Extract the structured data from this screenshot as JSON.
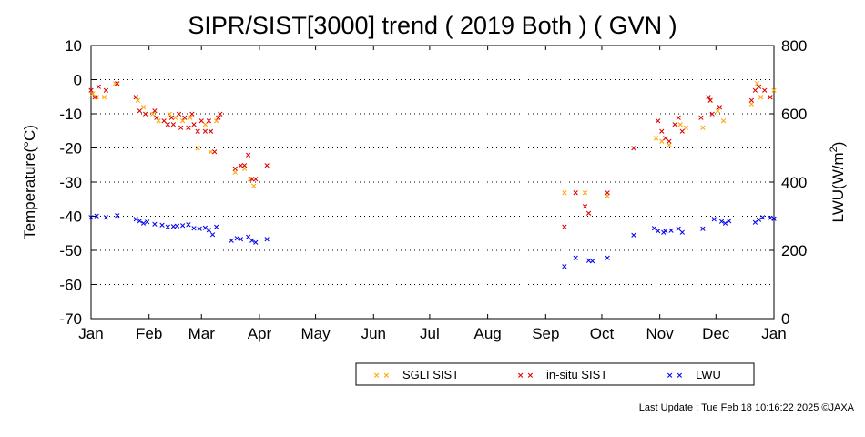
{
  "chart_data": {
    "type": "scatter",
    "title": "SIPR/SIST[3000] trend ( 2019 Both ) ( GVN )",
    "ylabel": "Temperature(°C)",
    "y2label": "LWU(W/m",
    "y2label_sup": "2",
    "y2label_close": ")",
    "ylim": [
      -70,
      10
    ],
    "y2lim": [
      0,
      800
    ],
    "xlim": [
      0,
      365
    ],
    "yticks": [
      10,
      0,
      -10,
      -20,
      -30,
      -40,
      -50,
      -60,
      -70
    ],
    "y2ticks": [
      800,
      600,
      400,
      200,
      0
    ],
    "xticks": [
      {
        "label": "Jan",
        "day": 0
      },
      {
        "label": "Feb",
        "day": 31
      },
      {
        "label": "Mar",
        "day": 59
      },
      {
        "label": "Apr",
        "day": 90
      },
      {
        "label": "May",
        "day": 120
      },
      {
        "label": "Jun",
        "day": 151
      },
      {
        "label": "Jul",
        "day": 181
      },
      {
        "label": "Aug",
        "day": 212
      },
      {
        "label": "Sep",
        "day": 243
      },
      {
        "label": "Oct",
        "day": 273
      },
      {
        "label": "Nov",
        "day": 304
      },
      {
        "label": "Dec",
        "day": 334
      },
      {
        "label": "Jan",
        "day": 365
      }
    ],
    "grid": "horizontal-dotted",
    "legend_position": "bottom-right",
    "series": [
      {
        "name": "SGLI SIST",
        "color": "#ffa500",
        "axis": "left",
        "points": [
          [
            1,
            -4
          ],
          [
            3,
            -5
          ],
          [
            7,
            -5
          ],
          [
            13,
            -1
          ],
          [
            25,
            -6
          ],
          [
            28,
            -8
          ],
          [
            33,
            -10
          ],
          [
            36,
            -12
          ],
          [
            42,
            -10
          ],
          [
            45,
            -11
          ],
          [
            49,
            -12
          ],
          [
            53,
            -11
          ],
          [
            57,
            -20
          ],
          [
            61,
            -13
          ],
          [
            64,
            -21
          ],
          [
            67,
            -12
          ],
          [
            77,
            -27
          ],
          [
            82,
            -26
          ],
          [
            85,
            -29
          ],
          [
            87,
            -31
          ],
          [
            253,
            -33
          ],
          [
            259,
            -33
          ],
          [
            264,
            -33
          ],
          [
            276,
            -34
          ],
          [
            302,
            -17
          ],
          [
            305,
            -18
          ],
          [
            309,
            -19
          ],
          [
            315,
            -13
          ],
          [
            318,
            -14
          ],
          [
            327,
            -14
          ],
          [
            331,
            -6
          ],
          [
            335,
            -9
          ],
          [
            338,
            -12
          ],
          [
            353,
            -7
          ],
          [
            356,
            -1
          ],
          [
            358,
            -5
          ],
          [
            363,
            -5
          ],
          [
            365,
            -3
          ]
        ]
      },
      {
        "name": "in-situ SIST",
        "color": "#dd0000",
        "axis": "left",
        "points": [
          [
            0,
            -3
          ],
          [
            2,
            -5
          ],
          [
            4,
            -2
          ],
          [
            8,
            -3
          ],
          [
            14,
            -1
          ],
          [
            24,
            -5
          ],
          [
            26,
            -9
          ],
          [
            29,
            -10
          ],
          [
            34,
            -9
          ],
          [
            35,
            -11
          ],
          [
            39,
            -12
          ],
          [
            41,
            -13
          ],
          [
            43,
            -11
          ],
          [
            44,
            -13
          ],
          [
            47,
            -10
          ],
          [
            48,
            -14
          ],
          [
            50,
            -11
          ],
          [
            52,
            -14
          ],
          [
            54,
            -10
          ],
          [
            55,
            -13
          ],
          [
            57,
            -15
          ],
          [
            59,
            -12
          ],
          [
            61,
            -15
          ],
          [
            63,
            -12
          ],
          [
            64,
            -15
          ],
          [
            66,
            -21
          ],
          [
            68,
            -11
          ],
          [
            69,
            -10
          ],
          [
            77,
            -26
          ],
          [
            80,
            -25
          ],
          [
            82,
            -25
          ],
          [
            84,
            -22
          ],
          [
            86,
            -29
          ],
          [
            88,
            -29
          ],
          [
            94,
            -25
          ],
          [
            253,
            -43
          ],
          [
            259,
            -33
          ],
          [
            264,
            -37
          ],
          [
            266,
            -39
          ],
          [
            276,
            -33
          ],
          [
            290,
            -20
          ],
          [
            303,
            -12
          ],
          [
            305,
            -15
          ],
          [
            307,
            -17
          ],
          [
            309,
            -18
          ],
          [
            312,
            -13
          ],
          [
            314,
            -11
          ],
          [
            316,
            -15
          ],
          [
            326,
            -11
          ],
          [
            330,
            -5
          ],
          [
            331,
            -6
          ],
          [
            332,
            -10
          ],
          [
            336,
            -8
          ],
          [
            353,
            -6
          ],
          [
            355,
            -3
          ],
          [
            357,
            -2
          ],
          [
            360,
            -3
          ],
          [
            363,
            -5
          ]
        ]
      },
      {
        "name": "LWU",
        "color": "#0000ee",
        "axis": "right",
        "points": [
          [
            0,
            297
          ],
          [
            3,
            302
          ],
          [
            8,
            298
          ],
          [
            14,
            303
          ],
          [
            24,
            292
          ],
          [
            26,
            287
          ],
          [
            28,
            280
          ],
          [
            30,
            284
          ],
          [
            34,
            278
          ],
          [
            38,
            275
          ],
          [
            41,
            270
          ],
          [
            44,
            271
          ],
          [
            46,
            272
          ],
          [
            49,
            273
          ],
          [
            52,
            276
          ],
          [
            55,
            265
          ],
          [
            58,
            264
          ],
          [
            61,
            267
          ],
          [
            63,
            260
          ],
          [
            65,
            247
          ],
          [
            67,
            270
          ],
          [
            75,
            230
          ],
          [
            78,
            236
          ],
          [
            80,
            234
          ],
          [
            84,
            240
          ],
          [
            86,
            229
          ],
          [
            88,
            224
          ],
          [
            94,
            233
          ],
          [
            253,
            154
          ],
          [
            259,
            179
          ],
          [
            266,
            171
          ],
          [
            268,
            169
          ],
          [
            276,
            179
          ],
          [
            290,
            245
          ],
          [
            301,
            266
          ],
          [
            303,
            258
          ],
          [
            306,
            253
          ],
          [
            307,
            258
          ],
          [
            310,
            259
          ],
          [
            314,
            264
          ],
          [
            316,
            254
          ],
          [
            327,
            264
          ],
          [
            333,
            292
          ],
          [
            337,
            285
          ],
          [
            339,
            280
          ],
          [
            341,
            287
          ],
          [
            355,
            283
          ],
          [
            357,
            291
          ],
          [
            359,
            298
          ],
          [
            363,
            296
          ],
          [
            365,
            294
          ]
        ]
      }
    ],
    "footer": "Last Update : Tue Feb 18 10:16:22 2025  ©JAXA"
  }
}
